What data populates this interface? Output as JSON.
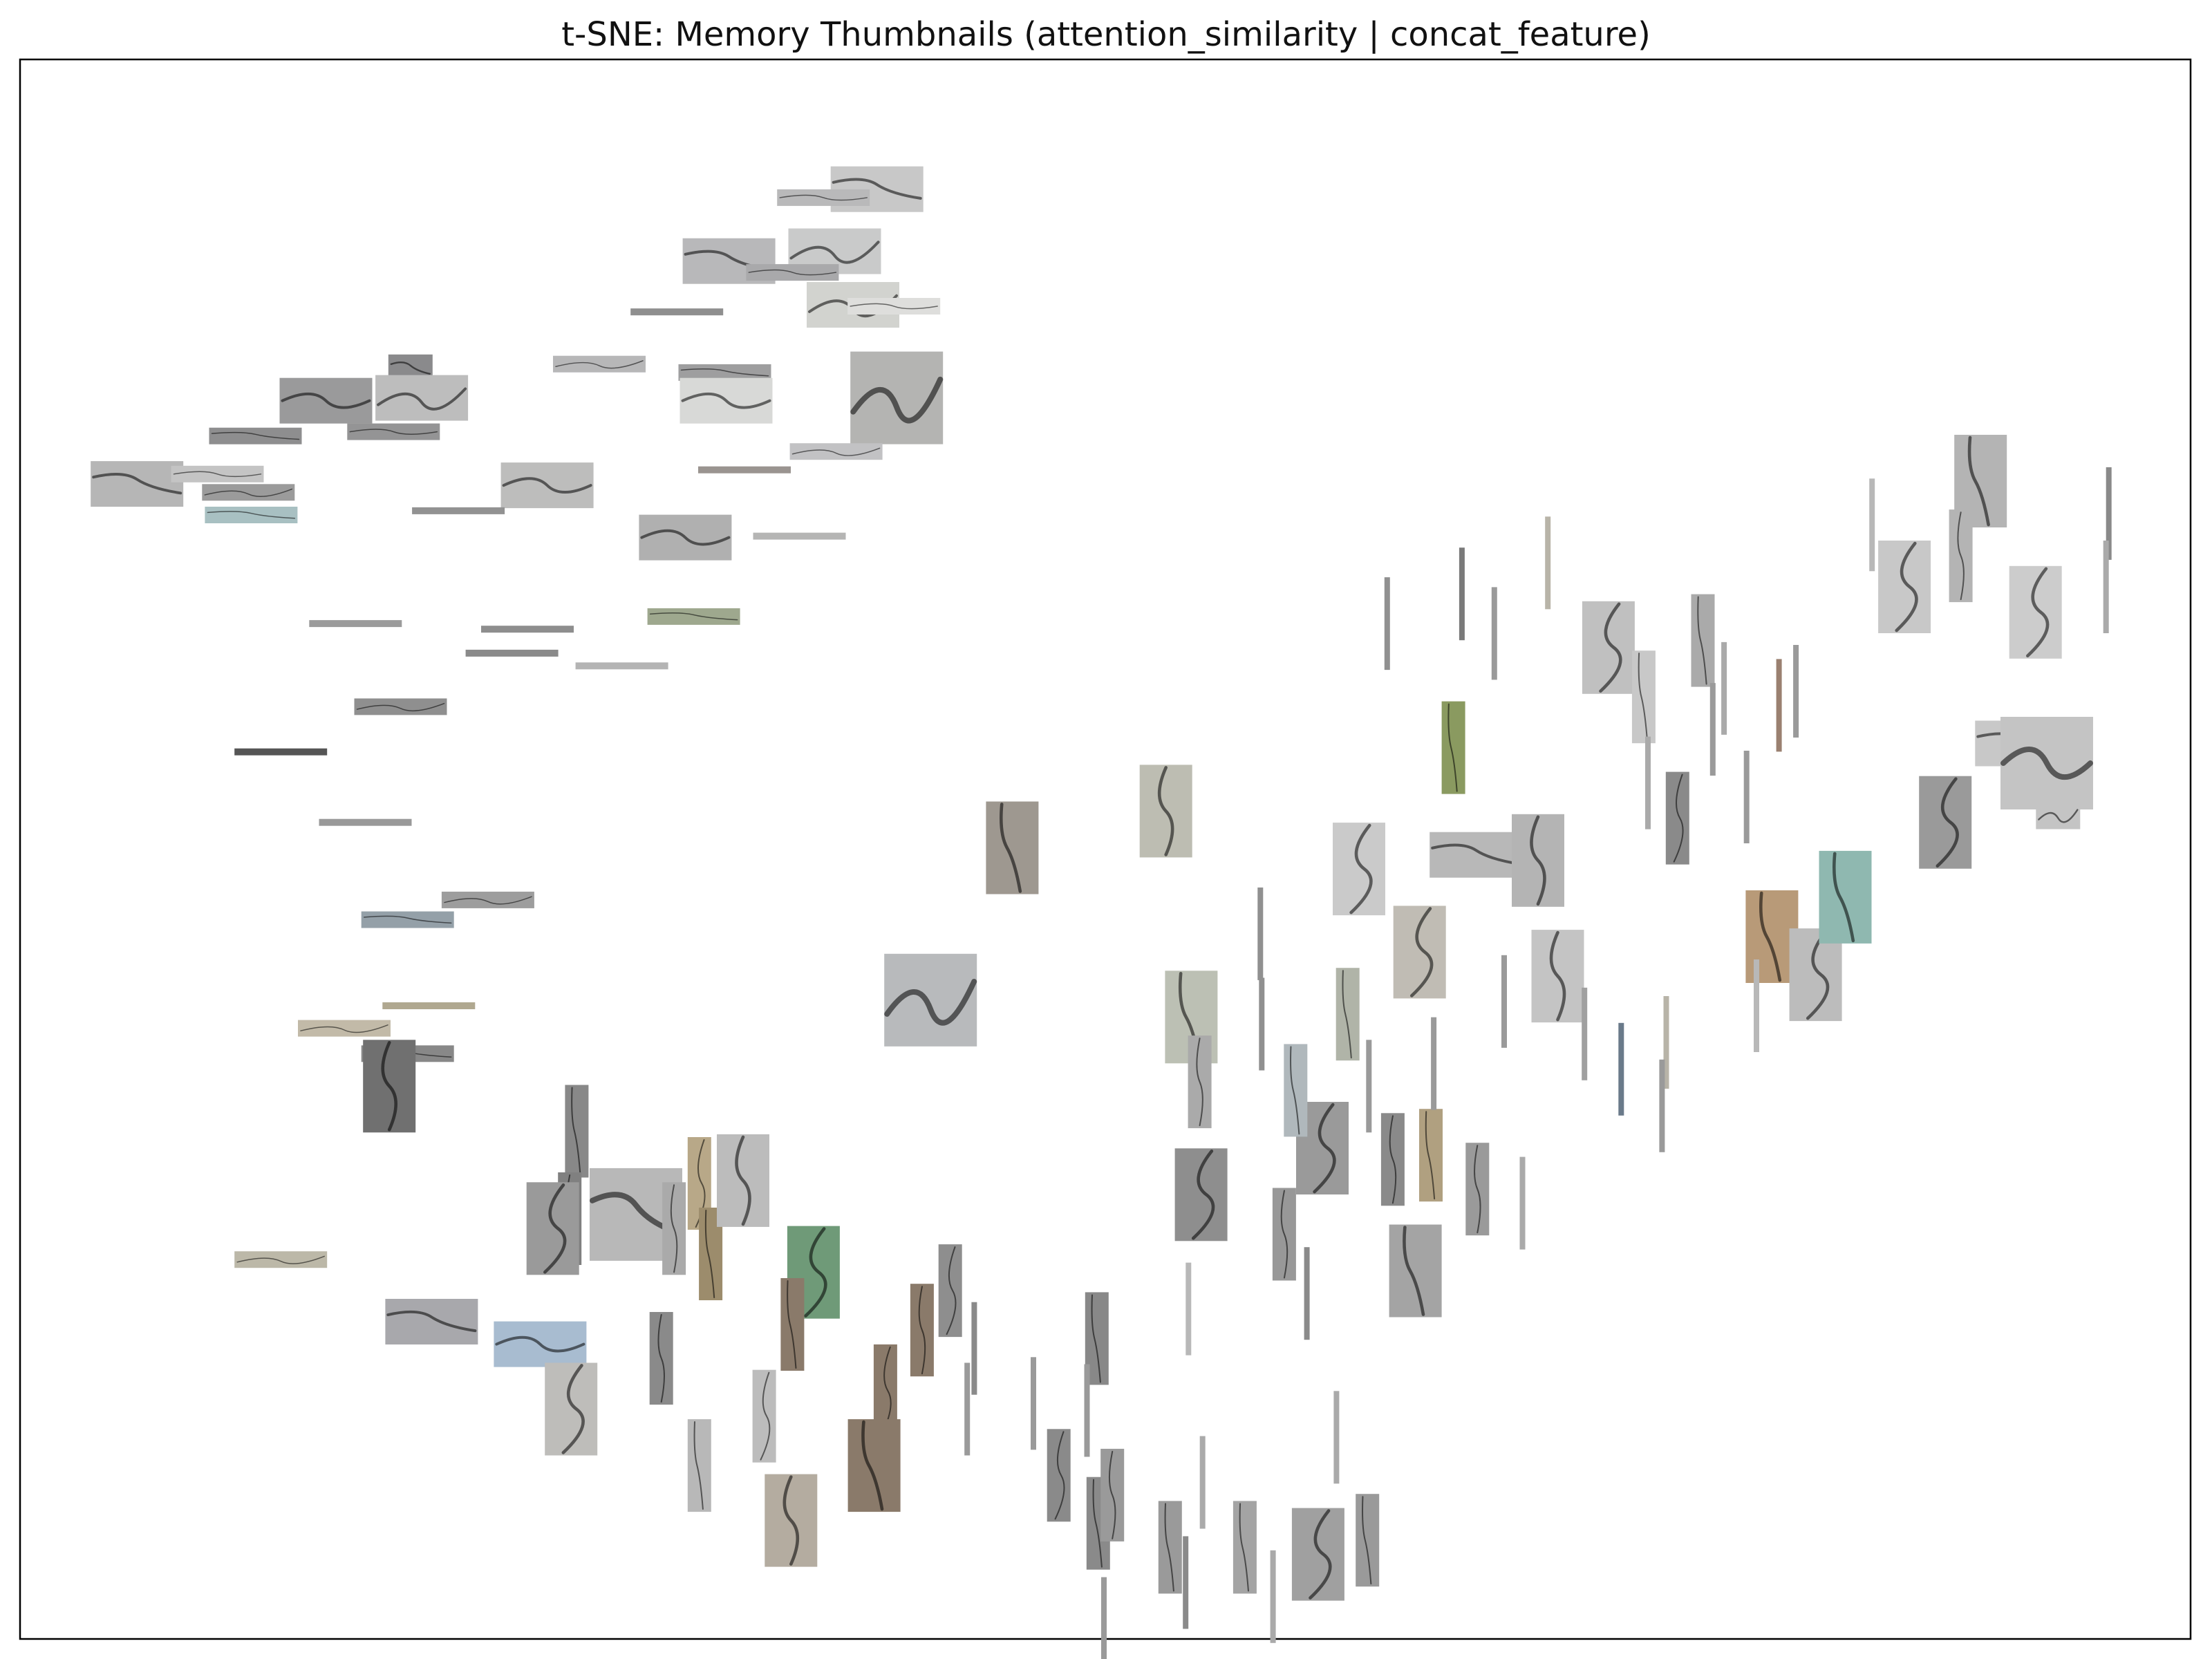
{
  "chart_data": {
    "type": "scatter",
    "title": "t-SNE: Memory Thumbnails (attention_similarity | concat_feature)",
    "xlabel": "",
    "ylabel": "",
    "xlim": [
      0,
      1540
    ],
    "ylim": [
      1120,
      0
    ],
    "axes_visible": false,
    "grid": false,
    "marker": "image-thumbnail",
    "series": [
      {
        "points": [
          [
            608,
            92,
            "landscape",
            "#c8c8c8"
          ],
          [
            570,
            98,
            "thin",
            "#b9b9ba"
          ],
          [
            578,
            136,
            "landscape",
            "#c9caca"
          ],
          [
            503,
            143,
            "landscape",
            "#b8b8ba"
          ],
          [
            548,
            151,
            "thin",
            "#a9a9ab"
          ],
          [
            591,
            174,
            "landscape",
            "#d2d3cf"
          ],
          [
            466,
            179,
            "line",
            "#8f8f8f"
          ],
          [
            620,
            175,
            "thin",
            "#dededc"
          ],
          [
            411,
            216,
            "thin",
            "#b7b7b8"
          ],
          [
            277,
            219,
            "small",
            "#8a8a8c"
          ],
          [
            217,
            242,
            "landscape",
            "#9a9a9b"
          ],
          [
            285,
            240,
            "landscape",
            "#bdbdbd"
          ],
          [
            500,
            222,
            "thin",
            "#9e9e9f"
          ],
          [
            501,
            242,
            "landscape",
            "#d8d9d7"
          ],
          [
            622,
            240,
            "square",
            "#b4b4b2"
          ],
          [
            167,
            267,
            "thin",
            "#8e8e8f"
          ],
          [
            265,
            264,
            "thin",
            "#949495"
          ],
          [
            579,
            278,
            "thin",
            "#c2c2c4"
          ],
          [
            83,
            301,
            "landscape",
            "#b6b6b6"
          ],
          [
            140,
            294,
            "thin",
            "#c4c4c4"
          ],
          [
            162,
            307,
            "thin",
            "#9b9b9b"
          ],
          [
            514,
            291,
            "line",
            "#9a9490"
          ],
          [
            374,
            302,
            "landscape",
            "#bdbdbc"
          ],
          [
            311,
            320,
            "line",
            "#929292"
          ],
          [
            164,
            323,
            "thin",
            "#a8c0c2"
          ],
          [
            472,
            339,
            "landscape",
            "#b0b0b0"
          ],
          [
            553,
            338,
            "line",
            "#b5b5b4"
          ],
          [
            478,
            395,
            "thin",
            "#9ea88e"
          ],
          [
            238,
            400,
            "line",
            "#9b9b9b"
          ],
          [
            360,
            404,
            "line",
            "#8e8e8e"
          ],
          [
            349,
            421,
            "line",
            "#8a8a8a"
          ],
          [
            427,
            430,
            "line",
            "#b4b4b4"
          ],
          [
            270,
            459,
            "thin",
            "#8f8f8f"
          ],
          [
            185,
            491,
            "line",
            "#555555"
          ],
          [
            245,
            541,
            "line",
            "#999999"
          ],
          [
            332,
            596,
            "thin",
            "#9d9d9d"
          ],
          [
            275,
            610,
            "thin",
            "#94a0a8"
          ],
          [
            290,
            671,
            "line",
            "#b0a890"
          ],
          [
            230,
            687,
            "thin",
            "#c2baa8"
          ],
          [
            275,
            705,
            "thin",
            "#888888"
          ],
          [
            262,
            728,
            "tall",
            "#707070"
          ],
          [
            185,
            851,
            "thin",
            "#bcb8a8"
          ],
          [
            292,
            895,
            "landscape",
            "#a8a8ac"
          ],
          [
            369,
            911,
            "landscape",
            "#a8bcd0"
          ],
          [
            391,
            957,
            "tall",
            "#bebdba"
          ],
          [
            395,
            760,
            "strip",
            "#888888"
          ],
          [
            390,
            822,
            "strip",
            "#808080"
          ],
          [
            378,
            829,
            "tall",
            "#9a9a9a"
          ],
          [
            437,
            819,
            "square",
            "#b8b8b8"
          ],
          [
            464,
            829,
            "strip",
            "#aaaaaa"
          ],
          [
            482,
            797,
            "strip",
            "#b8a888"
          ],
          [
            490,
            847,
            "strip",
            "#9c8c6c"
          ],
          [
            513,
            795,
            "tall",
            "#bcbcbc"
          ],
          [
            563,
            860,
            "tall",
            "#6f9a78"
          ],
          [
            548,
            897,
            "strip",
            "#8a7a6a"
          ],
          [
            455,
            921,
            "strip",
            "#8a8a8a"
          ],
          [
            528,
            962,
            "strip",
            "#bcbcbc"
          ],
          [
            482,
            997,
            "strip",
            "#b8b8b8"
          ],
          [
            547,
            1036,
            "tall",
            "#b4aca0"
          ],
          [
            646,
            667,
            "square",
            "#b8babc"
          ],
          [
            704,
            559,
            "tall",
            "#9e9890"
          ],
          [
            813,
            533,
            "tall",
            "#bdbdb2"
          ],
          [
            660,
            873,
            "strip",
            "#8e8e8e"
          ],
          [
            677,
            914,
            "line-v",
            "#8a8a8a"
          ],
          [
            640,
            901,
            "strip",
            "#8a7a6a"
          ],
          [
            614,
            944,
            "strip",
            "#8a7a6a"
          ],
          [
            606,
            997,
            "tall",
            "#8a7a6a"
          ],
          [
            672,
            957,
            "line-v",
            "#9a9a9a"
          ],
          [
            719,
            953,
            "line-v",
            "#9a9a9a"
          ],
          [
            764,
            907,
            "strip",
            "#888888"
          ],
          [
            757,
            958,
            "line-v",
            "#9a9a9a"
          ],
          [
            737,
            1004,
            "strip",
            "#8a8a8a"
          ],
          [
            765,
            1038,
            "strip",
            "#8a8a8a"
          ],
          [
            775,
            1018,
            "strip",
            "#9a9a9a"
          ],
          [
            769,
            1109,
            "line-v",
            "#9a9a9a"
          ],
          [
            816,
            1055,
            "strip",
            "#9a9a9a"
          ],
          [
            827,
            1080,
            "line-v",
            "#8a8a8a"
          ],
          [
            839,
            1009,
            "line-v",
            "#aaaaaa"
          ],
          [
            869,
            1055,
            "strip",
            "#a4a4a4"
          ],
          [
            889,
            1090,
            "line-v",
            "#aaaaaa"
          ],
          [
            921,
            1060,
            "tall",
            "#a0a0a0"
          ],
          [
            956,
            1050,
            "strip",
            "#9a9a9a"
          ],
          [
            934,
            977,
            "line-v",
            "#aaaaaa"
          ],
          [
            838,
            805,
            "tall",
            "#8e8e8e"
          ],
          [
            829,
            886,
            "line-v",
            "#b8b8b8"
          ],
          [
            897,
            833,
            "strip",
            "#989898"
          ],
          [
            913,
            875,
            "line-v",
            "#8a8a8a"
          ],
          [
            990,
            859,
            "tall",
            "#a4a4a4"
          ],
          [
            1034,
            801,
            "strip",
            "#9a9a9a"
          ],
          [
            1066,
            811,
            "line-v",
            "#aaaaaa"
          ],
          [
            1001,
            777,
            "strip",
            "#b0a080"
          ],
          [
            974,
            780,
            "strip",
            "#8a8a8a"
          ],
          [
            924,
            772,
            "tall",
            "#9a9a9a"
          ],
          [
            905,
            731,
            "strip",
            "#b0b8bc"
          ],
          [
            957,
            728,
            "line-v",
            "#9a9a9a"
          ],
          [
            1003,
            712,
            "line-v",
            "#9a9a9a"
          ],
          [
            942,
            677,
            "strip",
            "#b0b4a8"
          ],
          [
            880,
            620,
            "line-v",
            "#909090"
          ],
          [
            881,
            684,
            "line-v",
            "#909090"
          ],
          [
            831,
            679,
            "tall",
            "#bcc0b4"
          ],
          [
            837,
            725,
            "strip",
            "#aaaaaa"
          ],
          [
            950,
            574,
            "tall",
            "#cacaca"
          ],
          [
            1033,
            564,
            "landscape",
            "#b8b8b8"
          ],
          [
            1077,
            568,
            "tall",
            "#b4b4b4"
          ],
          [
            993,
            633,
            "tall",
            "#c0bcb4"
          ],
          [
            1053,
            668,
            "line-v",
            "#9a9a9a"
          ],
          [
            1091,
            650,
            "tall",
            "#c4c4c4"
          ],
          [
            1110,
            691,
            "line-v",
            "#a0a0a0"
          ],
          [
            1136,
            716,
            "line-v",
            "#6a7a8a"
          ],
          [
            1168,
            697,
            "line-v",
            "#b8b4a8"
          ],
          [
            1165,
            742,
            "line-v",
            "#9a9a9a"
          ],
          [
            1017,
            488,
            "strip",
            "#8a9a60"
          ],
          [
            970,
            400,
            "line-v",
            "#909090"
          ],
          [
            1023,
            379,
            "line-v",
            "#7a7a7a"
          ],
          [
            1046,
            407,
            "line-v",
            "#9a9a9a"
          ],
          [
            1084,
            357,
            "line-v",
            "#b8b4a8"
          ],
          [
            1127,
            417,
            "tall",
            "#c0c0c0"
          ],
          [
            1152,
            452,
            "strip",
            "#c8c8c8"
          ],
          [
            1155,
            513,
            "line-v",
            "#aaaaaa"
          ],
          [
            1176,
            538,
            "strip",
            "#8a8a8a"
          ],
          [
            1194,
            412,
            "strip",
            "#aaaaaa"
          ],
          [
            1201,
            475,
            "line-v",
            "#9a9a9a"
          ],
          [
            1209,
            446,
            "line-v",
            "#aaaaaa"
          ],
          [
            1225,
            523,
            "line-v",
            "#9a9a9a"
          ],
          [
            1248,
            458,
            "line-v",
            "#9a8070"
          ],
          [
            1260,
            448,
            "line-v",
            "#9a9a9a"
          ],
          [
            1243,
            622,
            "tall",
            "#b89a78"
          ],
          [
            1232,
            671,
            "line-v",
            "#b8b8b8"
          ],
          [
            1274,
            649,
            "tall",
            "#bcbcbc"
          ],
          [
            1295,
            594,
            "tall",
            "#8fb8b0"
          ],
          [
            1314,
            330,
            "line-v",
            "#b8b8b8"
          ],
          [
            1337,
            374,
            "tall",
            "#c8c8c8"
          ],
          [
            1391,
            299,
            "tall",
            "#b4b4b4"
          ],
          [
            1377,
            352,
            "strip",
            "#b4b4b4"
          ],
          [
            1430,
            392,
            "tall",
            "#cccccc"
          ],
          [
            1482,
            322,
            "line-v",
            "#8a8a8a"
          ],
          [
            1480,
            374,
            "line-v",
            "#aaaaaa"
          ],
          [
            1366,
            541,
            "tall",
            "#9a9a9a"
          ],
          [
            1420,
            485,
            "landscape",
            "#c8c8c8"
          ],
          [
            1438,
            499,
            "square",
            "#c4c4c4"
          ],
          [
            1446,
            536,
            "small",
            "#c4c4c4"
          ]
        ]
      }
    ]
  }
}
